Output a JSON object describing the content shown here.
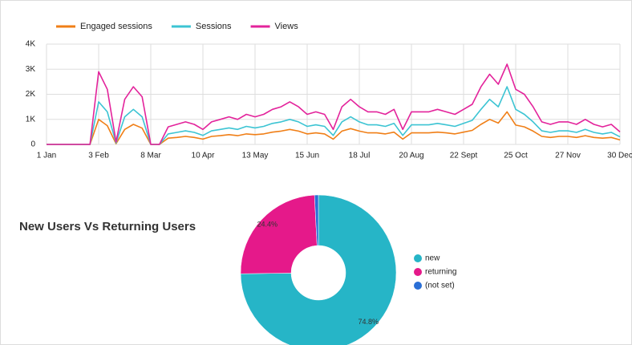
{
  "chart_data": [
    {
      "type": "line",
      "categories": [
        "1 Jan",
        null,
        null,
        null,
        null,
        null,
        "3 Feb",
        null,
        null,
        null,
        null,
        null,
        "8 Mar",
        null,
        null,
        null,
        null,
        null,
        "10 Apr",
        null,
        null,
        null,
        null,
        null,
        "13 May",
        null,
        null,
        null,
        null,
        null,
        "15 Jun",
        null,
        null,
        null,
        null,
        null,
        "18 Jul",
        null,
        null,
        null,
        null,
        null,
        "20 Aug",
        null,
        null,
        null,
        null,
        null,
        "22 Sept",
        null,
        null,
        null,
        null,
        null,
        "25 Oct",
        null,
        null,
        null,
        null,
        null,
        "27 Nov",
        null,
        null,
        null,
        null,
        null,
        "30 Dec"
      ],
      "series": [
        {
          "name": "Engaged sessions",
          "color": "#f07f17",
          "values": [
            0,
            0,
            0,
            0,
            0,
            0,
            1000,
            750,
            30,
            600,
            800,
            650,
            0,
            0,
            250,
            280,
            320,
            280,
            210,
            320,
            350,
            390,
            350,
            420,
            390,
            420,
            490,
            530,
            600,
            530,
            420,
            460,
            420,
            210,
            530,
            630,
            530,
            460,
            460,
            420,
            490,
            210,
            460,
            460,
            460,
            490,
            460,
            420,
            490,
            560,
            800,
            1000,
            850,
            1300,
            770,
            700,
            530,
            320,
            280,
            320,
            320,
            280,
            350,
            280,
            250,
            280,
            180
          ]
        },
        {
          "name": "Sessions",
          "color": "#3cc4d3",
          "values": [
            0,
            0,
            0,
            0,
            0,
            0,
            1700,
            1300,
            60,
            1100,
            1400,
            1100,
            0,
            0,
            420,
            480,
            540,
            480,
            360,
            540,
            600,
            660,
            600,
            720,
            660,
            720,
            840,
            900,
            1000,
            900,
            720,
            780,
            720,
            360,
            900,
            1100,
            900,
            780,
            780,
            720,
            840,
            360,
            780,
            780,
            780,
            840,
            780,
            720,
            840,
            960,
            1400,
            1800,
            1500,
            2300,
            1400,
            1200,
            900,
            540,
            480,
            540,
            540,
            480,
            600,
            480,
            420,
            480,
            300
          ]
        },
        {
          "name": "Views",
          "color": "#e3239b",
          "values": [
            0,
            0,
            0,
            0,
            0,
            0,
            2900,
            2200,
            100,
            1800,
            2300,
            1900,
            0,
            0,
            700,
            800,
            900,
            800,
            600,
            900,
            1000,
            1100,
            1000,
            1200,
            1100,
            1200,
            1400,
            1500,
            1700,
            1500,
            1200,
            1300,
            1200,
            600,
            1500,
            1800,
            1500,
            1300,
            1300,
            1200,
            1400,
            600,
            1300,
            1300,
            1300,
            1400,
            1300,
            1200,
            1400,
            1600,
            2300,
            2800,
            2400,
            3200,
            2200,
            2000,
            1500,
            900,
            800,
            900,
            900,
            800,
            1000,
            800,
            700,
            800,
            500
          ]
        }
      ],
      "ylim": [
        0,
        4000
      ],
      "yticks": [
        0,
        {
          "value": 1000,
          "label": "1K"
        },
        {
          "value": 2000,
          "label": "2K"
        },
        {
          "value": 3000,
          "label": "3K"
        },
        {
          "value": 4000,
          "label": "4K"
        }
      ],
      "grid": true,
      "legend": "top"
    },
    {
      "type": "pie",
      "title": "New Users Vs Returning Users",
      "categories": [
        "new",
        "returning",
        "(not set)"
      ],
      "values": [
        74.8,
        24.4,
        0.8
      ],
      "value_labels": [
        "74.8%",
        "24.4%",
        null
      ],
      "colors": [
        "#26b5c7",
        "#e5198a",
        "#2a6fd6"
      ],
      "donut": true,
      "legend": "right"
    }
  ]
}
